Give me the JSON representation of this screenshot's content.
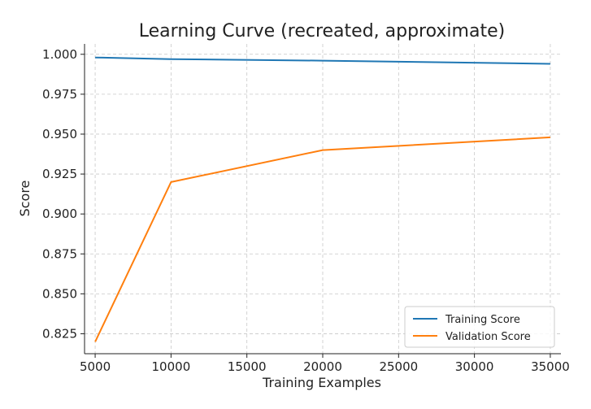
{
  "chart_data": {
    "type": "line",
    "title": "Learning Curve (recreated, approximate)",
    "xlabel": "Training Examples",
    "ylabel": "Score",
    "x": [
      5000,
      10000,
      20000,
      35000
    ],
    "xlim": [
      4300,
      35700
    ],
    "ylim": [
      0.8125,
      1.0065
    ],
    "xticks": [
      5000,
      10000,
      15000,
      20000,
      25000,
      30000,
      35000
    ],
    "xtick_labels": [
      "5000",
      "10000",
      "15000",
      "20000",
      "25000",
      "30000",
      "35000"
    ],
    "yticks": [
      0.825,
      0.85,
      0.875,
      0.9,
      0.925,
      0.95,
      0.975,
      1.0
    ],
    "ytick_labels": [
      "0.825",
      "0.850",
      "0.875",
      "0.900",
      "0.925",
      "0.950",
      "0.975",
      "1.000"
    ],
    "grid": true,
    "legend_position": "lower-right",
    "series": [
      {
        "name": "Training Score",
        "color": "#1f77b4",
        "values": [
          0.998,
          0.997,
          0.996,
          0.994
        ]
      },
      {
        "name": "Validation Score",
        "color": "#ff7f0e",
        "values": [
          0.82,
          0.92,
          0.94,
          0.948
        ]
      }
    ]
  }
}
